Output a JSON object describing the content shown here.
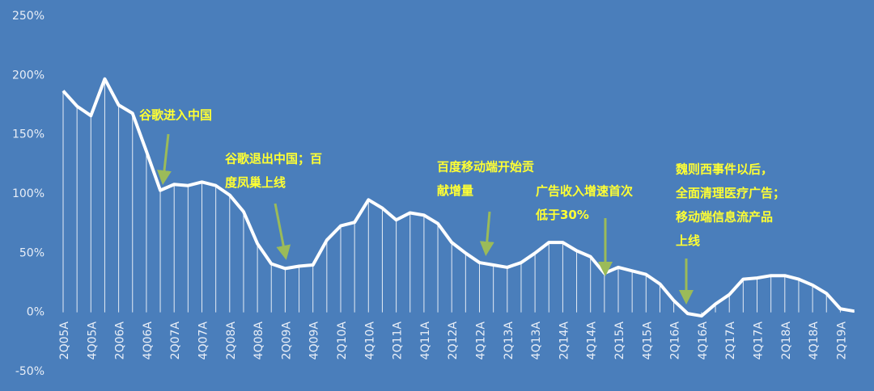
{
  "chart_data": {
    "type": "line",
    "categories": [
      "2Q05A",
      null,
      "4Q05A",
      null,
      "2Q06A",
      null,
      "4Q06A",
      null,
      "2Q07A",
      null,
      "4Q07A",
      null,
      "2Q08A",
      null,
      "4Q08A",
      null,
      "2Q09A",
      null,
      "4Q09A",
      null,
      "2Q10A",
      null,
      "4Q10A",
      null,
      "2Q11A",
      null,
      "4Q11A",
      null,
      "2Q12A",
      null,
      "4Q12A",
      null,
      "2Q13A",
      null,
      "4Q13A",
      null,
      "2Q14A",
      null,
      "4Q14A",
      null,
      "2Q15A",
      null,
      "4Q15A",
      null,
      "2Q16A",
      null,
      "4Q16A",
      null,
      "2Q17A",
      null,
      "4Q17A",
      null,
      "2Q18A",
      null,
      "4Q18A",
      null,
      "2Q19A",
      null
    ],
    "values": [
      187,
      174,
      166,
      197,
      175,
      168,
      136,
      103,
      108,
      107,
      110,
      107,
      99,
      85,
      58,
      41,
      37,
      39,
      40,
      61,
      73,
      76,
      95,
      88,
      78,
      84,
      82,
      75,
      59,
      50,
      42,
      40,
      38,
      42,
      50,
      59,
      59,
      52,
      47,
      33,
      38,
      35,
      32,
      24,
      10,
      -1,
      -3,
      7,
      15,
      28,
      29,
      31,
      31,
      28,
      23,
      16,
      3,
      1
    ],
    "color": "#ffffff",
    "ylim": [
      -50,
      250
    ],
    "yticks": [
      {
        "value": -50,
        "label": "-50%"
      },
      {
        "value": 0,
        "label": "0%"
      },
      {
        "value": 50,
        "label": "50%"
      },
      {
        "value": 100,
        "label": "100%"
      },
      {
        "value": 150,
        "label": "150%"
      },
      {
        "value": 200,
        "label": "200%"
      },
      {
        "value": 250,
        "label": "250%"
      }
    ],
    "annotations": [
      [
        "谷歌进入中国"
      ],
      [
        "谷歌退出中国；百",
        "度凤巢上线"
      ],
      [
        "百度移动端开始贡",
        "献增量"
      ],
      [
        "广告收入增速首次",
        "低于30%"
      ],
      [
        "魏则西事件以后，",
        "全面清理医疗广告；",
        "移动端信息流产品",
        "上线"
      ]
    ]
  }
}
